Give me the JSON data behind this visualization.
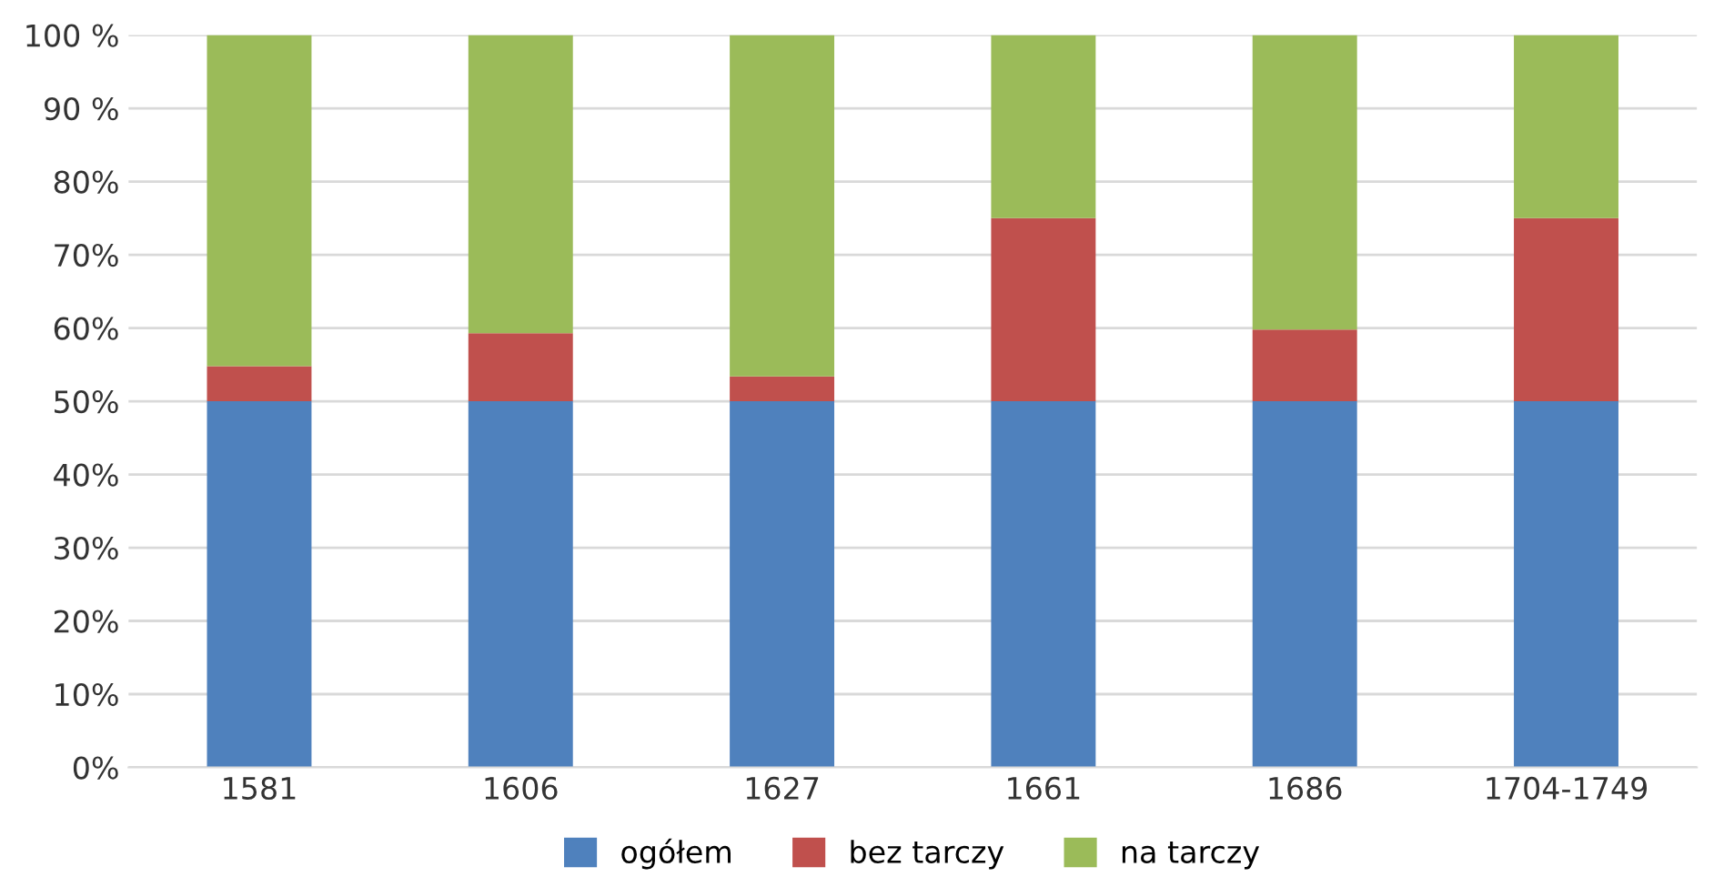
{
  "chart_data": {
    "type": "bar",
    "stacked": true,
    "categories": [
      "1581",
      "1606",
      "1627",
      "1661",
      "1686",
      "1704-1749"
    ],
    "series": [
      {
        "name": "ogółem",
        "color": "#4f81bd",
        "values": [
          50,
          50,
          50,
          50,
          50,
          50
        ]
      },
      {
        "name": "bez tarczy",
        "color": "#c0504d",
        "values": [
          4.8,
          9.3,
          3.4,
          25,
          9.8,
          25
        ]
      },
      {
        "name": "na tarczy",
        "color": "#9bbb59",
        "values": [
          45.2,
          40.7,
          46.6,
          25,
          40.2,
          25
        ]
      }
    ],
    "ylim": [
      0,
      100
    ],
    "yticks": [
      {
        "value": 0,
        "label": "0%"
      },
      {
        "value": 10,
        "label": "10%"
      },
      {
        "value": 20,
        "label": "20%"
      },
      {
        "value": 30,
        "label": "30%"
      },
      {
        "value": 40,
        "label": "40%"
      },
      {
        "value": 50,
        "label": "50%"
      },
      {
        "value": 60,
        "label": "60%"
      },
      {
        "value": 70,
        "label": "70%"
      },
      {
        "value": 80,
        "label": "80%"
      },
      {
        "value": 90,
        "label": "90 %"
      },
      {
        "value": 100,
        "label": "100 %"
      }
    ],
    "grid": "y",
    "legend": "bottom"
  }
}
